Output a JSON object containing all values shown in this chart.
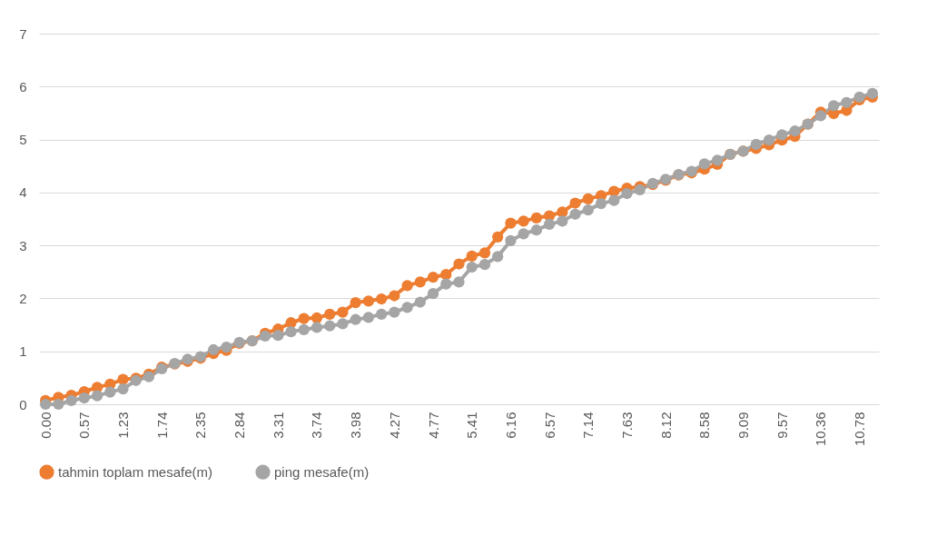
{
  "chart_data": {
    "type": "line",
    "categories": [
      "0.00",
      null,
      null,
      "0.57",
      null,
      null,
      "1.23",
      null,
      null,
      "1.74",
      null,
      null,
      "2.35",
      null,
      null,
      "2.84",
      null,
      null,
      "3.31",
      null,
      null,
      "3.74",
      null,
      null,
      "3.98",
      null,
      null,
      "4.27",
      null,
      null,
      "4.77",
      null,
      null,
      "5.41",
      null,
      null,
      "6.16",
      null,
      null,
      "6.57",
      null,
      null,
      "7.14",
      null,
      null,
      "7.63",
      null,
      null,
      "8.12",
      null,
      null,
      "8.58",
      null,
      null,
      "9.09",
      null,
      null,
      "9.57",
      null,
      null,
      "10.36",
      null,
      null,
      "10.78",
      null
    ],
    "series": [
      {
        "name": "tahmin toplam mesafe(m)",
        "color": "#ed7d31",
        "values": [
          0.07,
          0.13,
          0.17,
          0.24,
          0.32,
          0.38,
          0.47,
          0.49,
          0.57,
          0.7,
          0.76,
          0.81,
          0.87,
          0.96,
          1.02,
          1.15,
          1.2,
          1.34,
          1.42,
          1.54,
          1.62,
          1.63,
          1.7,
          1.74,
          1.92,
          1.95,
          1.99,
          2.05,
          2.24,
          2.31,
          2.4,
          2.45,
          2.65,
          2.8,
          2.86,
          3.16,
          3.42,
          3.46,
          3.52,
          3.56,
          3.63,
          3.8,
          3.88,
          3.94,
          4.02,
          4.08,
          4.11,
          4.15,
          4.23,
          4.33,
          4.37,
          4.44,
          4.53,
          4.72,
          4.78,
          4.83,
          4.9,
          4.99,
          5.06,
          5.29,
          5.52,
          5.49,
          5.55,
          5.75,
          5.8
        ]
      },
      {
        "name": "ping mesafe(m)",
        "color": "#a5a5a5",
        "values": [
          0.0,
          0.0,
          0.07,
          0.12,
          0.16,
          0.23,
          0.29,
          0.45,
          0.52,
          0.67,
          0.77,
          0.85,
          0.9,
          1.03,
          1.08,
          1.17,
          1.2,
          1.29,
          1.3,
          1.37,
          1.41,
          1.45,
          1.48,
          1.52,
          1.6,
          1.64,
          1.7,
          1.74,
          1.83,
          1.93,
          2.09,
          2.27,
          2.31,
          2.59,
          2.64,
          2.79,
          3.09,
          3.22,
          3.29,
          3.4,
          3.46,
          3.59,
          3.67,
          3.79,
          3.85,
          3.98,
          4.05,
          4.17,
          4.25,
          4.34,
          4.4,
          4.54,
          4.61,
          4.72,
          4.78,
          4.91,
          4.99,
          5.09,
          5.16,
          5.29,
          5.45,
          5.64,
          5.7,
          5.8,
          5.87
        ]
      }
    ],
    "ylim": [
      0,
      7
    ],
    "yticks": [
      0,
      1,
      2,
      3,
      4,
      5,
      6,
      7
    ],
    "grid": "y",
    "legend": "bottom",
    "marker": "circle",
    "line_style": "solid"
  }
}
